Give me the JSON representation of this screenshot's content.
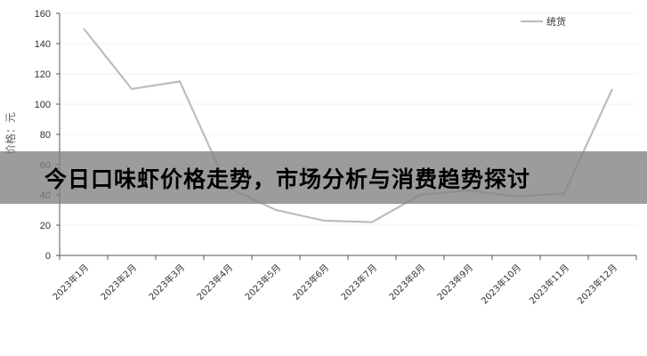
{
  "chart_data": {
    "type": "line",
    "title": "",
    "xlabel": "",
    "ylabel": "价格：元",
    "ylim": [
      0,
      160
    ],
    "yticks": [
      0,
      20,
      40,
      60,
      80,
      100,
      120,
      140,
      160
    ],
    "grid": true,
    "legend_position": "top-right",
    "categories": [
      "2023年1月",
      "2023年2月",
      "2023年3月",
      "2023年4月",
      "2023年5月",
      "2023年6月",
      "2023年7月",
      "2023年8月",
      "2023年9月",
      "2023年10月",
      "2023年11月",
      "2023年12月"
    ],
    "series": [
      {
        "name": "统货",
        "color": "#bdbdbd",
        "values": [
          150,
          110,
          115,
          45,
          30,
          23,
          22,
          40,
          43,
          39,
          41,
          110
        ]
      }
    ]
  },
  "banner": {
    "text": "今日口味虾价格走势，市场分析与消费趋势探讨"
  }
}
